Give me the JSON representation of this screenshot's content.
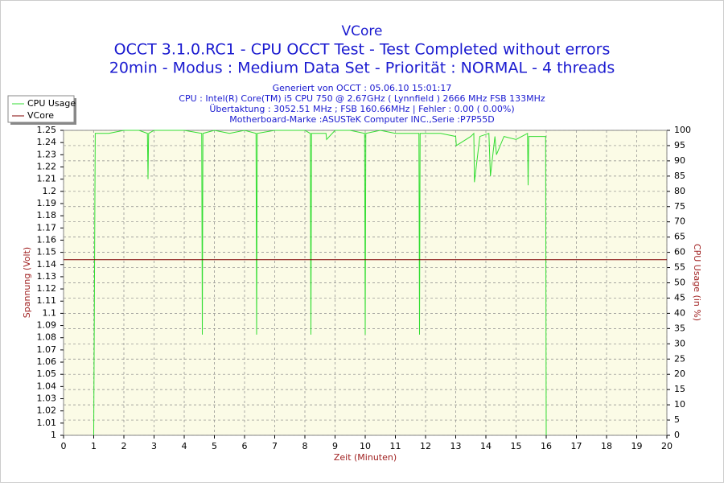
{
  "chart_data": {
    "type": "line",
    "title": "VCore",
    "subtitle_lines": [
      "OCCT 3.1.0.RC1 - CPU OCCT Test - Test Completed without errors",
      "20min - Modus : Medium Data Set - Priorität : NORMAL - 4 threads"
    ],
    "info_lines": [
      "Generiert von OCCT : 05.06.10 15:01:17",
      "CPU : Intel(R) Core(TM) i5 CPU 750 @ 2.67GHz ( Lynnfield ) 2666 MHz FSB 133MHz",
      "Übertaktung : 3052.51 MHz ; FSB 160.66MHz | Fehler : 0.00 ( 0.00%)",
      "Motherboard-Marke :ASUSTeK Computer INC.,Serie :P7P55D"
    ],
    "x_label": "Zeit (Minuten)",
    "y_label": "Spannung (Volt)",
    "y2_label": "CPU Usage (in %)",
    "xlim": [
      0,
      20
    ],
    "xticks": [
      0,
      1,
      2,
      3,
      4,
      5,
      6,
      7,
      8,
      9,
      10,
      11,
      12,
      13,
      14,
      15,
      16,
      17,
      18,
      19,
      20
    ],
    "ylim": [
      1,
      1.25
    ],
    "yticks": [
      1,
      1.01,
      1.02,
      1.03,
      1.04,
      1.05,
      1.06,
      1.07,
      1.08,
      1.09,
      1.1,
      1.11,
      1.12,
      1.13,
      1.14,
      1.15,
      1.16,
      1.17,
      1.18,
      1.19,
      1.2,
      1.21,
      1.22,
      1.23,
      1.24,
      1.25
    ],
    "y2lim": [
      0,
      100
    ],
    "y2ticks": [
      0,
      5,
      10,
      15,
      20,
      25,
      30,
      35,
      40,
      45,
      50,
      55,
      60,
      65,
      70,
      75,
      80,
      85,
      90,
      95,
      100
    ],
    "grid": true,
    "legend": "top-left",
    "series": [
      {
        "name": "CPU Usage",
        "color": "#33dd33",
        "axis": "y2",
        "x": [
          1.0,
          1.02,
          1.05,
          1.5,
          2.0,
          2.5,
          2.78,
          2.8,
          2.82,
          3.0,
          3.5,
          4.0,
          4.58,
          4.6,
          4.62,
          5.0,
          5.5,
          6.0,
          6.38,
          6.4,
          6.42,
          7.0,
          7.5,
          8.0,
          8.18,
          8.2,
          8.22,
          8.7,
          8.72,
          9.0,
          9.5,
          9.98,
          10.0,
          10.02,
          10.5,
          11.0,
          11.78,
          11.8,
          11.82,
          12.5,
          13.0,
          13.02,
          13.5,
          13.6,
          13.62,
          13.8,
          14.1,
          14.15,
          14.3,
          14.35,
          14.6,
          15.0,
          15.38,
          15.4,
          15.42,
          15.7,
          15.98,
          16.0
        ],
        "values": [
          0,
          40,
          99,
          99,
          100,
          100,
          99,
          84,
          99,
          100,
          100,
          100,
          99,
          33,
          99,
          100,
          99,
          100,
          99,
          33,
          99,
          100,
          100,
          100,
          99,
          33,
          99,
          99,
          97,
          100,
          100,
          99,
          33,
          99,
          100,
          99,
          99,
          33,
          99,
          99,
          98,
          95,
          98,
          99,
          83,
          98,
          99,
          85,
          98,
          92,
          98,
          97,
          99,
          82,
          98,
          98,
          98,
          0
        ]
      },
      {
        "name": "VCore",
        "color": "#800000",
        "x": [
          0,
          20
        ],
        "values": [
          1.144,
          1.144
        ]
      }
    ]
  }
}
